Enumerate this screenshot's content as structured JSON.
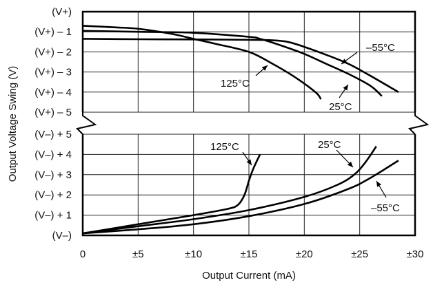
{
  "chart_data": {
    "type": "line",
    "title": "",
    "xlabel": "Output Current (mA)",
    "ylabel": "Output Voltage Swing (V)",
    "x_ticks": [
      "0",
      "±5",
      "±10",
      "±15",
      "±20",
      "±25",
      "±30"
    ],
    "x_tick_values": [
      0,
      5,
      10,
      15,
      20,
      25,
      30
    ],
    "xlim": [
      0,
      30
    ],
    "grid": true,
    "broken_y_axis": true,
    "panels": [
      {
        "name": "upper",
        "description": "Swing from positive rail (volts below V+)",
        "y_ticks": [
          "(V+)",
          "(V+) – 1",
          "(V+) – 2",
          "(V+) – 3",
          "(V+) – 4",
          "(V+) – 5"
        ],
        "ylim_volts_below_rail": [
          0,
          5
        ],
        "series": [
          {
            "name": "–55°C",
            "x": [
              0,
              5,
              10,
              15,
              17,
              18.5,
              20,
              22,
              24,
              26,
              28.5
            ],
            "y": [
              1.35,
              1.37,
              1.38,
              1.4,
              1.42,
              1.5,
              1.75,
              2.15,
              2.6,
              3.2,
              4.0
            ]
          },
          {
            "name": "25°C",
            "x": [
              0,
              5,
              10,
              15,
              16,
              18,
              20,
              22,
              24,
              26,
              27
            ],
            "y": [
              0.95,
              1.0,
              1.05,
              1.25,
              1.35,
              1.7,
              2.1,
              2.6,
              3.1,
              3.7,
              4.2
            ]
          },
          {
            "name": "125°C",
            "x": [
              0,
              3,
              5,
              8,
              10,
              12,
              15,
              17,
              19,
              21,
              21.5
            ],
            "y": [
              0.7,
              0.78,
              0.85,
              1.1,
              1.35,
              1.6,
              2.0,
              2.55,
              3.2,
              4.0,
              4.35
            ]
          }
        ]
      },
      {
        "name": "lower",
        "description": "Swing from negative rail (volts above V–)",
        "y_ticks": [
          "(V–) + 5",
          "(V–) + 4",
          "(V–) + 3",
          "(V–) + 2",
          "(V–) + 1",
          "(V–)"
        ],
        "ylim_volts_above_rail": [
          0,
          5
        ],
        "series": [
          {
            "name": "125°C",
            "x": [
              0,
              5,
              10,
              13,
              14,
              14.6,
              15,
              15.4,
              16
            ],
            "y": [
              0.1,
              0.55,
              1.0,
              1.3,
              1.5,
              2.0,
              2.7,
              3.3,
              4.0
            ]
          },
          {
            "name": "25°C",
            "x": [
              0,
              5,
              10,
              15,
              20,
              23,
              24.5,
              25.5,
              26.5
            ],
            "y": [
              0.1,
              0.45,
              0.8,
              1.25,
              1.9,
              2.5,
              3.0,
              3.6,
              4.4
            ]
          },
          {
            "name": "–55°C",
            "x": [
              0,
              5,
              10,
              15,
              20,
              24,
              26,
              28.5
            ],
            "y": [
              0.1,
              0.3,
              0.55,
              0.95,
              1.55,
              2.3,
              2.85,
              3.7
            ]
          }
        ]
      }
    ],
    "annotations": [
      {
        "panel": "upper",
        "text": "–55°C"
      },
      {
        "panel": "upper",
        "text": "125°C"
      },
      {
        "panel": "upper",
        "text": "25°C"
      },
      {
        "panel": "lower",
        "text": "125°C"
      },
      {
        "panel": "lower",
        "text": "25°C"
      },
      {
        "panel": "lower",
        "text": "–55°C"
      }
    ]
  }
}
